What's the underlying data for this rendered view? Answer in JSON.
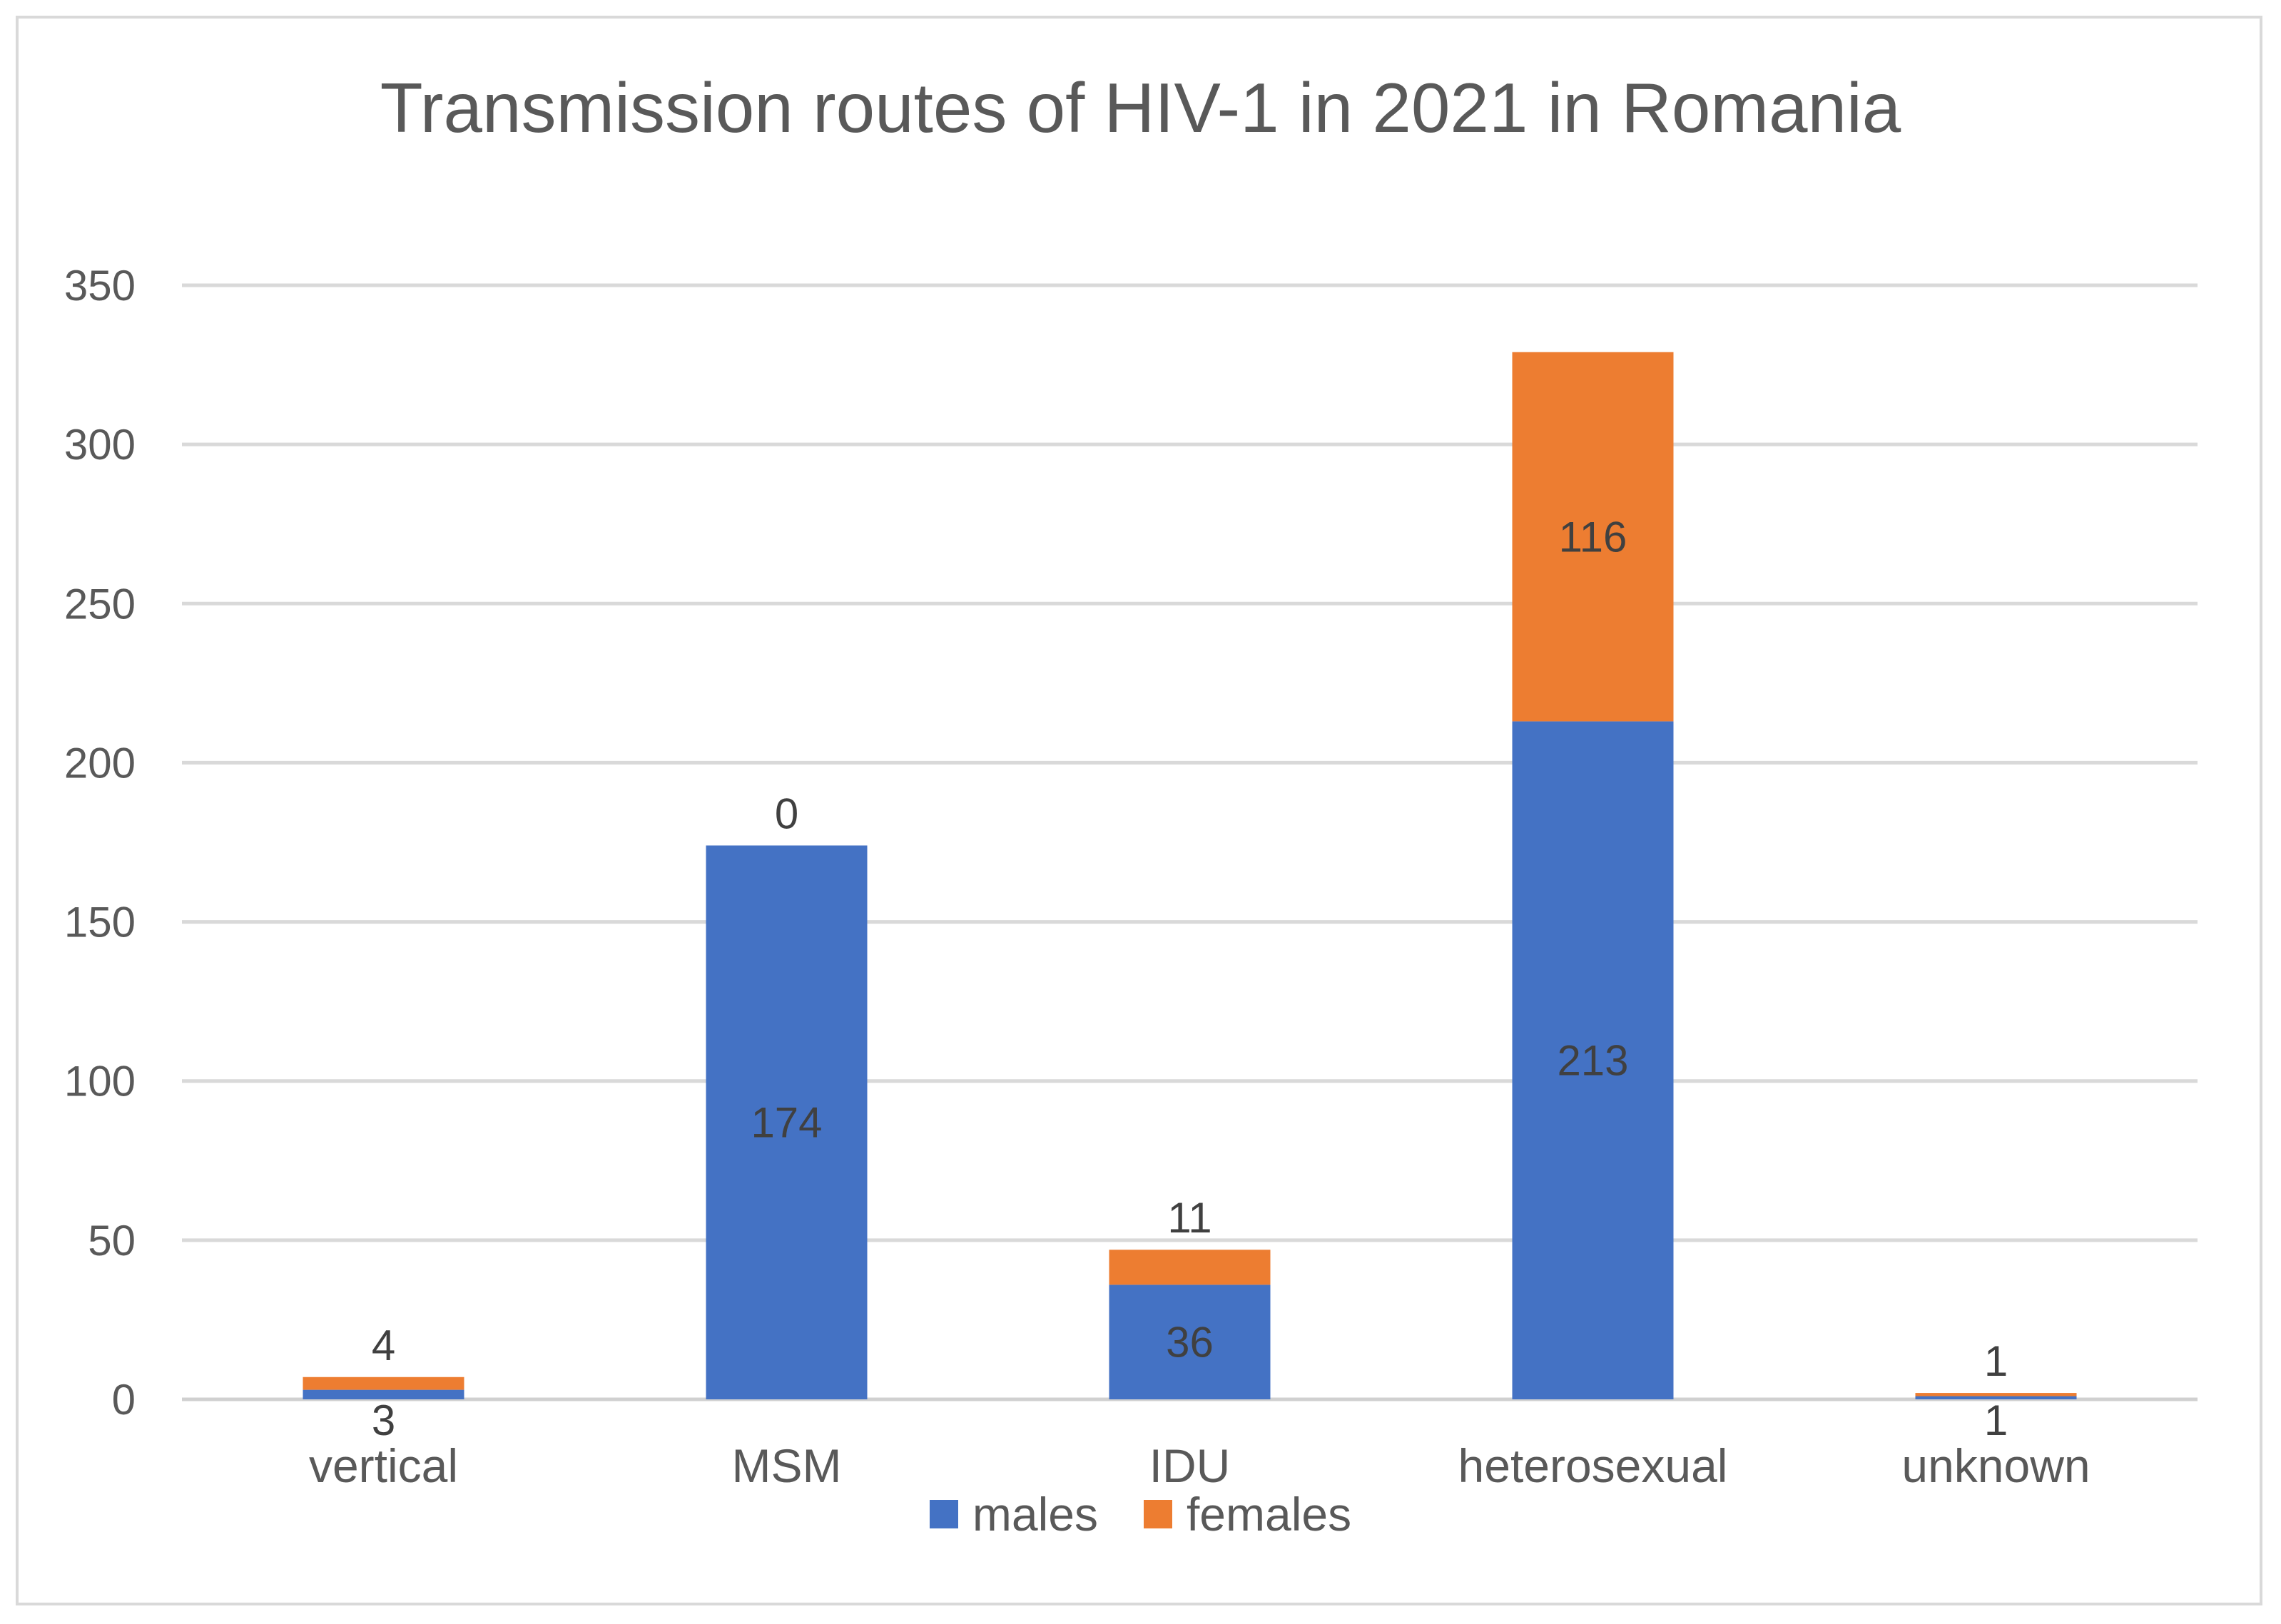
{
  "chart_data": {
    "type": "bar",
    "stacked": true,
    "title": "Transmission routes of HIV-1 in 2021 in Romania",
    "categories": [
      "vertical",
      "MSM",
      "IDU",
      "heterosexual",
      "unknown"
    ],
    "series": [
      {
        "name": "males",
        "color": "#4472c4",
        "values": [
          3,
          174,
          36,
          213,
          1
        ]
      },
      {
        "name": "females",
        "color": "#ed7d31",
        "values": [
          4,
          0,
          11,
          116,
          1
        ]
      }
    ],
    "ylim": [
      0,
      350
    ],
    "yticks": [
      0,
      50,
      100,
      150,
      200,
      250,
      300,
      350
    ],
    "xlabel": "",
    "ylabel": "",
    "grid": true,
    "legend_position": "bottom"
  }
}
